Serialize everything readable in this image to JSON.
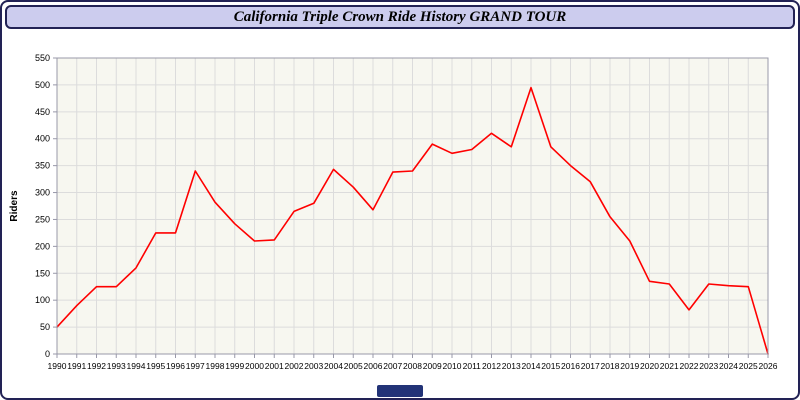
{
  "header": {
    "title": "California Triple Crown Ride History GRAND TOUR"
  },
  "colors": {
    "window_border": "#222255",
    "header_bg": "#ccccee",
    "line": "#ff0000",
    "plot_bg": "#f7f7f0",
    "grid": "#dcdcdc",
    "frame": "#9898a8",
    "tick_text": "#000000",
    "badge": "#223377"
  },
  "chart_data": {
    "type": "line",
    "title": "California Triple Crown Ride History GRAND TOUR",
    "xlabel": "",
    "ylabel": "Riders",
    "ylim": [
      0,
      550
    ],
    "ytick_step": 50,
    "grid": true,
    "legend_position": "none",
    "x": [
      1990,
      1991,
      1992,
      1993,
      1994,
      1995,
      1996,
      1997,
      1998,
      1999,
      2000,
      2001,
      2002,
      2003,
      2004,
      2005,
      2006,
      2007,
      2008,
      2009,
      2010,
      2011,
      2012,
      2013,
      2014,
      2015,
      2016,
      2017,
      2018,
      2019,
      2020,
      2021,
      2022,
      2023,
      2024,
      2025,
      2026
    ],
    "values": [
      50,
      90,
      125,
      125,
      160,
      225,
      225,
      340,
      282,
      242,
      210,
      212,
      265,
      280,
      343,
      310,
      268,
      338,
      340,
      390,
      373,
      380,
      410,
      385,
      495,
      385,
      350,
      320,
      255,
      210,
      135,
      130,
      82,
      130,
      127,
      125,
      0
    ]
  }
}
